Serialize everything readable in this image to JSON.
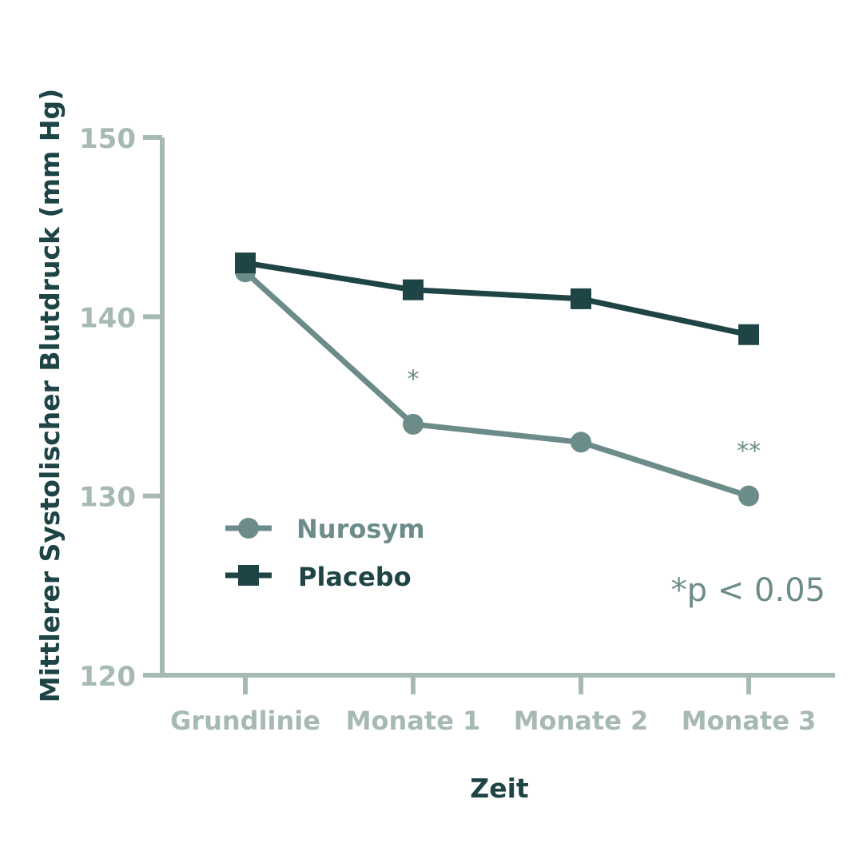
{
  "colors": {
    "axis": "#a7b9b4",
    "nurosym": "#6c8c89",
    "placebo": "#1e4446",
    "title": "#1e4446",
    "tick_text": "#a7b9b4",
    "annotation": "#6c8c89"
  },
  "chart_data": {
    "type": "line",
    "xlabel": "Zeit",
    "ylabel": "Mittlerer Systolischer Blutdruck (mm Hg)",
    "categories": [
      "Grundlinie",
      "Monate 1",
      "Monate 2",
      "Monate 3"
    ],
    "ylim": [
      120,
      150
    ],
    "yticks": [
      120,
      130,
      140,
      150
    ],
    "grid": false,
    "legend_position": "bottom-left",
    "series": [
      {
        "name": "Nurosym",
        "marker": "circle",
        "values": [
          142.5,
          134,
          133,
          130
        ]
      },
      {
        "name": "Placebo",
        "marker": "square",
        "values": [
          143,
          141.5,
          141,
          139
        ]
      }
    ],
    "annotations": [
      {
        "text": "*",
        "category": "Monate 1",
        "y": 136.6
      },
      {
        "text": "**",
        "category": "Monate 3",
        "y": 132.6
      }
    ],
    "note": "*p < 0.05"
  }
}
